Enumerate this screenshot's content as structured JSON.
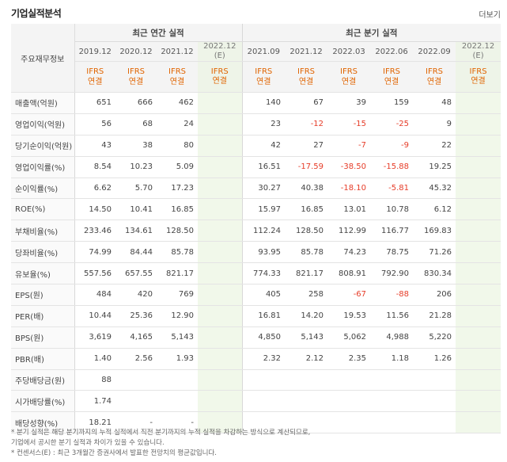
{
  "header": {
    "title": "기업실적분석",
    "more": "더보기"
  },
  "table": {
    "corner": "주요재무정보",
    "annual_label": "최근 연간 실적",
    "quarter_label": "최근 분기 실적",
    "annual_periods": [
      "2019.12",
      "2020.12",
      "2021.12",
      "2022.12\n(E)"
    ],
    "quarter_periods": [
      "2021.09",
      "2021.12",
      "2022.03",
      "2022.06",
      "2022.09",
      "2022.12\n(E)"
    ],
    "basis_top": "IFRS",
    "basis_bottom": "연결",
    "rows": [
      {
        "label": "매출액(억원)",
        "a": [
          "651",
          "666",
          "462",
          ""
        ],
        "q": [
          "140",
          "67",
          "39",
          "159",
          "48",
          ""
        ]
      },
      {
        "label": "영업이익(억원)",
        "a": [
          "56",
          "68",
          "24",
          ""
        ],
        "q": [
          "23",
          "-12",
          "-15",
          "-25",
          "9",
          ""
        ]
      },
      {
        "label": "당기순이익(억원)",
        "a": [
          "43",
          "38",
          "80",
          ""
        ],
        "q": [
          "42",
          "27",
          "-7",
          "-9",
          "22",
          ""
        ]
      },
      {
        "label": "영업이익률(%)",
        "a": [
          "8.54",
          "10.23",
          "5.09",
          ""
        ],
        "q": [
          "16.51",
          "-17.59",
          "-38.50",
          "-15.88",
          "19.25",
          ""
        ]
      },
      {
        "label": "순이익률(%)",
        "a": [
          "6.62",
          "5.70",
          "17.23",
          ""
        ],
        "q": [
          "30.27",
          "40.38",
          "-18.10",
          "-5.81",
          "45.32",
          ""
        ]
      },
      {
        "label": "ROE(%)",
        "a": [
          "14.50",
          "10.41",
          "16.85",
          ""
        ],
        "q": [
          "15.97",
          "16.85",
          "13.01",
          "10.78",
          "6.12",
          ""
        ]
      },
      {
        "label": "부채비율(%)",
        "a": [
          "233.46",
          "134.61",
          "128.50",
          ""
        ],
        "q": [
          "112.24",
          "128.50",
          "112.99",
          "116.77",
          "169.83",
          ""
        ]
      },
      {
        "label": "당좌비율(%)",
        "a": [
          "74.99",
          "84.44",
          "85.78",
          ""
        ],
        "q": [
          "93.95",
          "85.78",
          "74.23",
          "78.75",
          "71.26",
          ""
        ]
      },
      {
        "label": "유보율(%)",
        "a": [
          "557.56",
          "657.55",
          "821.17",
          ""
        ],
        "q": [
          "774.33",
          "821.17",
          "808.91",
          "792.90",
          "830.34",
          ""
        ]
      },
      {
        "label": "EPS(원)",
        "a": [
          "484",
          "420",
          "769",
          ""
        ],
        "q": [
          "405",
          "258",
          "-67",
          "-88",
          "206",
          ""
        ]
      },
      {
        "label": "PER(배)",
        "a": [
          "10.44",
          "25.36",
          "12.90",
          ""
        ],
        "q": [
          "16.81",
          "14.20",
          "19.53",
          "11.56",
          "21.28",
          ""
        ]
      },
      {
        "label": "BPS(원)",
        "a": [
          "3,619",
          "4,165",
          "5,143",
          ""
        ],
        "q": [
          "4,850",
          "5,143",
          "5,062",
          "4,988",
          "5,220",
          ""
        ]
      },
      {
        "label": "PBR(배)",
        "a": [
          "1.40",
          "2.56",
          "1.93",
          ""
        ],
        "q": [
          "2.32",
          "2.12",
          "2.35",
          "1.18",
          "1.26",
          ""
        ]
      },
      {
        "label": "주당배당금(원)",
        "a": [
          "88",
          "",
          "",
          ""
        ],
        "q": [
          "",
          "",
          "",
          "",
          "",
          ""
        ]
      },
      {
        "label": "시가배당률(%)",
        "a": [
          "1.74",
          "",
          "",
          ""
        ],
        "q": [
          "",
          "",
          "",
          "",
          "",
          ""
        ]
      },
      {
        "label": "배당성향(%)",
        "a": [
          "18.21",
          "-",
          "-",
          ""
        ],
        "q": [
          "",
          "",
          "",
          "",
          "",
          ""
        ]
      }
    ]
  },
  "footnotes": [
    "* 분기 실적은 해당 분기까지의 누적 실적에서 직전 분기까지의 누적 실적을 차감하는 방식으로 계산되므로,",
    "   기업에서 공시한 분기 실적과 차이가 있을 수 있습니다.",
    "* 컨센서스(E) : 최근 3개월간 증권사에서 발표한 전망치의 평균값입니다."
  ],
  "colors": {
    "ifrs": "#e06400",
    "negative": "#e63c28",
    "estimate_bg": "#f1f8ea",
    "header_bg": "#f4f4f4"
  }
}
